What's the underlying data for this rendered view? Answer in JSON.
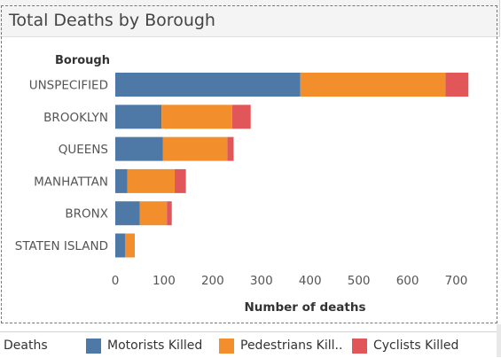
{
  "title": "Total Deaths by Borough",
  "legend": {
    "title": "Deaths",
    "items": [
      {
        "label": "Motorists Killed",
        "color": "#4e79a7"
      },
      {
        "label": "Pedestrians Kill..",
        "color": "#f28e2b"
      },
      {
        "label": "Cyclists Killed",
        "color": "#e15759"
      }
    ]
  },
  "chart_data": {
    "type": "bar",
    "orientation": "horizontal",
    "stacked": true,
    "category_header": "Borough",
    "categories": [
      "UNSPECIFIED",
      "BROOKLYN",
      "QUEENS",
      "MANHATTAN",
      "BRONX",
      "STATEN ISLAND"
    ],
    "series": [
      {
        "name": "Motorists Killed",
        "color": "#4e79a7",
        "values": [
          380,
          95,
          98,
          25,
          50,
          20
        ]
      },
      {
        "name": "Pedestrians Killed",
        "color": "#f28e2b",
        "values": [
          298,
          145,
          132,
          97,
          56,
          20
        ]
      },
      {
        "name": "Cyclists Killed",
        "color": "#e15759",
        "values": [
          47,
          38,
          13,
          23,
          10,
          0
        ]
      }
    ],
    "xlabel": "Number of deaths",
    "xlim": [
      0,
      750
    ],
    "xticks": [
      0,
      100,
      200,
      300,
      400,
      500,
      600,
      700
    ],
    "grid": false
  }
}
